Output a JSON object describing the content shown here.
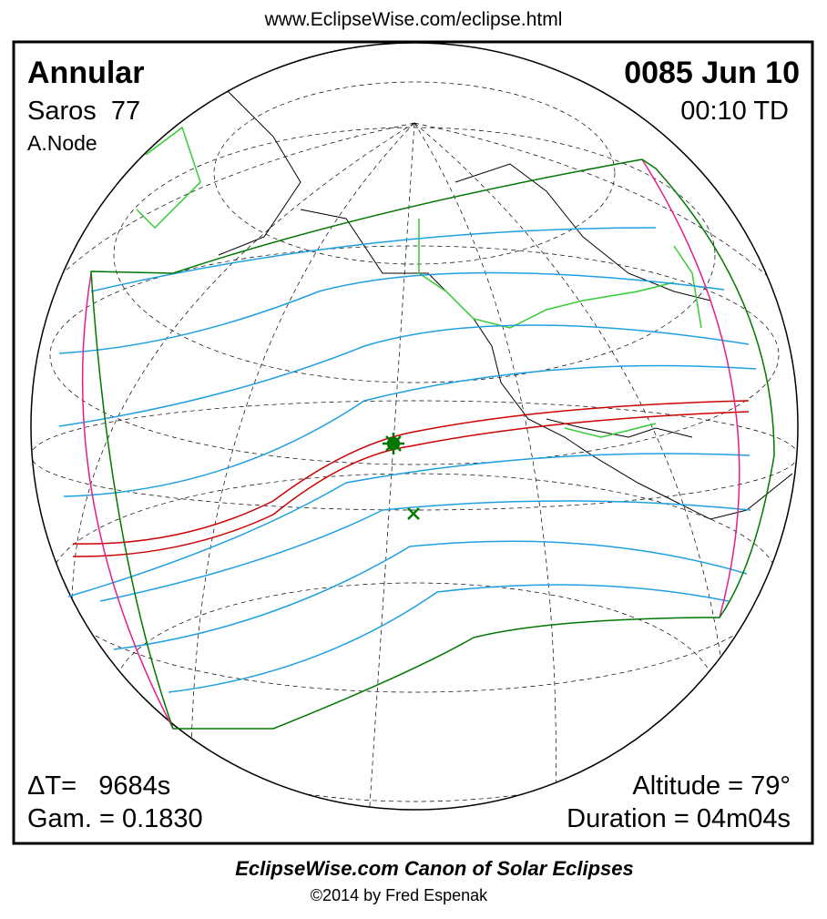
{
  "header": {
    "url": "www.EclipseWise.com/eclipse.html"
  },
  "panel": {
    "eclipse_type": "Annular",
    "saros": "Saros  77",
    "node": "A.Node",
    "date": "0085 Jun 10",
    "time": "00:10 TD",
    "delta_t": "ΔT=   9684s",
    "gamma": "Gam. = 0.1830",
    "altitude": "Altitude = 79°",
    "duration": "Duration = 04m04s"
  },
  "footer": {
    "title": "EclipseWise.com Canon of Solar Eclipses",
    "copyright": "©2014 by Fred Espenak"
  }
}
